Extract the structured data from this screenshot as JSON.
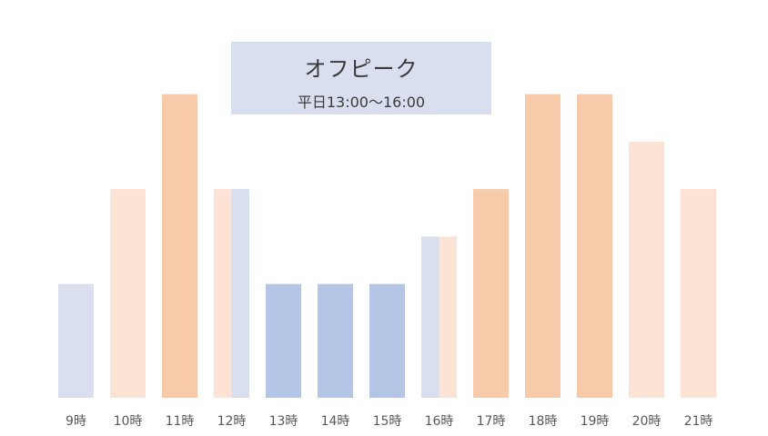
{
  "colors": {
    "peak": "#f7cbaa",
    "moderate": "#fde3d6",
    "off_peak": "#b4c5e6",
    "off_peak_light": "#dadff0"
  },
  "callout": {
    "title": "オフピーク",
    "subtitle": "平日13:00〜16:00"
  },
  "chart_data": {
    "type": "bar",
    "title": "オフピーク",
    "subtitle": "平日13:00〜16:00",
    "xlabel": "",
    "ylabel": "",
    "ylim": [
      0,
      100
    ],
    "grid": false,
    "legend": "none",
    "categories": [
      "9時",
      "10時",
      "11時",
      "12時",
      "13時",
      "14時",
      "15時",
      "16時",
      "17時",
      "18時",
      "19時",
      "20時",
      "21時"
    ],
    "values": [
      30,
      55,
      80,
      55,
      30,
      30,
      30,
      42.5,
      55,
      80,
      80,
      67.5,
      55
    ],
    "bars": [
      {
        "category": "9時",
        "value": 30,
        "segments": [
          "off_peak_light"
        ]
      },
      {
        "category": "10時",
        "value": 55,
        "segments": [
          "moderate"
        ]
      },
      {
        "category": "11時",
        "value": 80,
        "segments": [
          "peak"
        ]
      },
      {
        "category": "12時",
        "value": 55,
        "segments": [
          "moderate",
          "off_peak_light"
        ]
      },
      {
        "category": "13時",
        "value": 30,
        "segments": [
          "off_peak"
        ]
      },
      {
        "category": "14時",
        "value": 30,
        "segments": [
          "off_peak"
        ]
      },
      {
        "category": "15時",
        "value": 30,
        "segments": [
          "off_peak"
        ]
      },
      {
        "category": "16時",
        "value": 42.5,
        "segments": [
          "off_peak_light",
          "moderate"
        ]
      },
      {
        "category": "17時",
        "value": 55,
        "segments": [
          "peak"
        ]
      },
      {
        "category": "18時",
        "value": 80,
        "segments": [
          "peak"
        ]
      },
      {
        "category": "19時",
        "value": 80,
        "segments": [
          "peak"
        ]
      },
      {
        "category": "20時",
        "value": 67.5,
        "segments": [
          "moderate"
        ]
      },
      {
        "category": "21時",
        "value": 55,
        "segments": [
          "moderate"
        ]
      }
    ]
  }
}
